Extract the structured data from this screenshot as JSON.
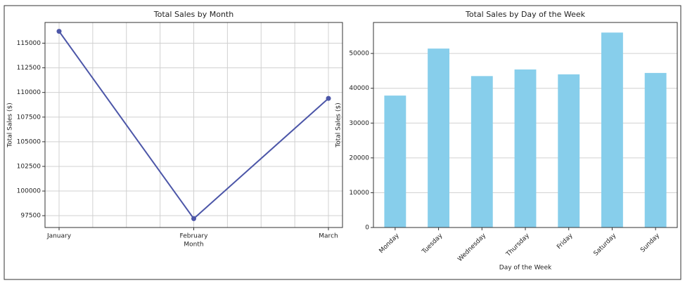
{
  "chart_data": [
    {
      "type": "line",
      "title": "Total Sales by Month",
      "x_label": "Month",
      "y_label": "Total Sales ($)",
      "categories": [
        "January",
        "February",
        "March"
      ],
      "series": [
        {
          "name": "Total Sales",
          "color": "#4c56a8",
          "values": [
            116200,
            97200,
            109400
          ]
        }
      ],
      "ylim": [
        96300,
        117100
      ],
      "yticks": [
        97500,
        100000,
        102500,
        105000,
        107500,
        110000,
        112500,
        115000
      ],
      "grid": true
    },
    {
      "type": "bar",
      "title": "Total Sales by Day of the Week",
      "x_label": "Day of the Week",
      "y_label": "Total Sales ($)",
      "categories": [
        "Monday",
        "Tuesday",
        "Wednesday",
        "Thursday",
        "Friday",
        "Saturday",
        "Sunday"
      ],
      "values": [
        37900,
        51400,
        43500,
        45400,
        44000,
        56000,
        44400
      ],
      "color": "#87ceeb",
      "ylim": [
        0,
        58900
      ],
      "yticks": [
        0,
        10000,
        20000,
        30000,
        40000,
        50000
      ],
      "grid": true
    }
  ]
}
